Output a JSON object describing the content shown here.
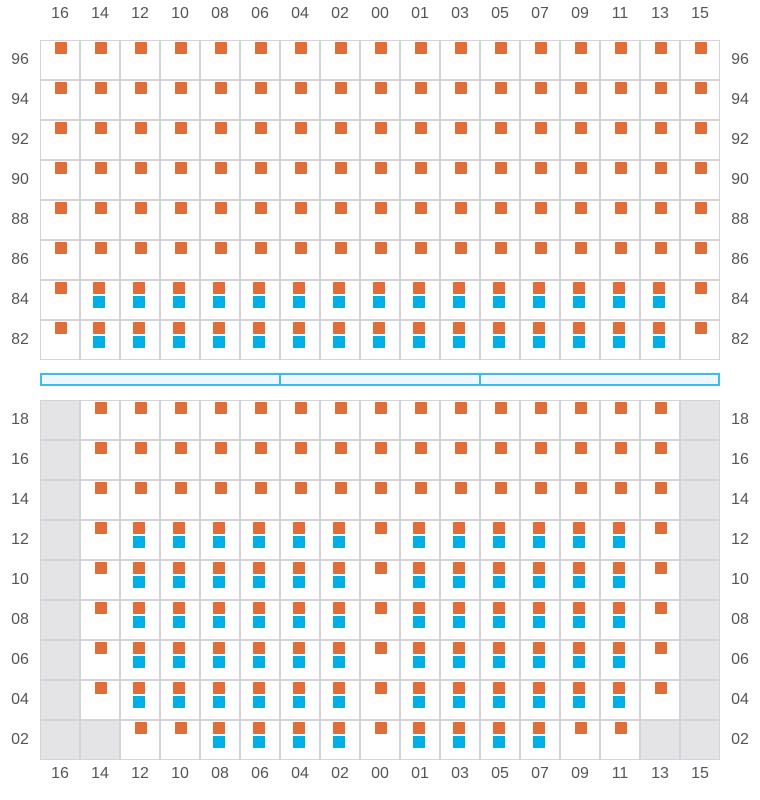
{
  "columns": [
    "16",
    "14",
    "12",
    "10",
    "08",
    "06",
    "04",
    "02",
    "00",
    "01",
    "03",
    "05",
    "07",
    "09",
    "11",
    "13",
    "15"
  ],
  "colors": {
    "seat_primary": "#e06c37",
    "seat_secondary": "#00aee8",
    "unavailable": "#e4e4e6",
    "divider": "#3bbcf0"
  },
  "legend_codes": {
    "o": "primary marker only",
    "ob": "primary and secondary markers",
    "x": "unavailable cell"
  },
  "sections": [
    {
      "rows": [
        {
          "label": "96",
          "cells": [
            "o",
            "o",
            "o",
            "o",
            "o",
            "o",
            "o",
            "o",
            "o",
            "o",
            "o",
            "o",
            "o",
            "o",
            "o",
            "o",
            "o"
          ]
        },
        {
          "label": "94",
          "cells": [
            "o",
            "o",
            "o",
            "o",
            "o",
            "o",
            "o",
            "o",
            "o",
            "o",
            "o",
            "o",
            "o",
            "o",
            "o",
            "o",
            "o"
          ]
        },
        {
          "label": "92",
          "cells": [
            "o",
            "o",
            "o",
            "o",
            "o",
            "o",
            "o",
            "o",
            "o",
            "o",
            "o",
            "o",
            "o",
            "o",
            "o",
            "o",
            "o"
          ]
        },
        {
          "label": "90",
          "cells": [
            "o",
            "o",
            "o",
            "o",
            "o",
            "o",
            "o",
            "o",
            "o",
            "o",
            "o",
            "o",
            "o",
            "o",
            "o",
            "o",
            "o"
          ]
        },
        {
          "label": "88",
          "cells": [
            "o",
            "o",
            "o",
            "o",
            "o",
            "o",
            "o",
            "o",
            "o",
            "o",
            "o",
            "o",
            "o",
            "o",
            "o",
            "o",
            "o"
          ]
        },
        {
          "label": "86",
          "cells": [
            "o",
            "o",
            "o",
            "o",
            "o",
            "o",
            "o",
            "o",
            "o",
            "o",
            "o",
            "o",
            "o",
            "o",
            "o",
            "o",
            "o"
          ]
        },
        {
          "label": "84",
          "cells": [
            "o",
            "ob",
            "ob",
            "ob",
            "ob",
            "ob",
            "ob",
            "ob",
            "ob",
            "ob",
            "ob",
            "ob",
            "ob",
            "ob",
            "ob",
            "ob",
            "o"
          ]
        },
        {
          "label": "82",
          "cells": [
            "o",
            "ob",
            "ob",
            "ob",
            "ob",
            "ob",
            "ob",
            "ob",
            "ob",
            "ob",
            "ob",
            "ob",
            "ob",
            "ob",
            "ob",
            "ob",
            "o"
          ]
        }
      ]
    },
    {
      "rows": [
        {
          "label": "18",
          "cells": [
            "x",
            "o",
            "o",
            "o",
            "o",
            "o",
            "o",
            "o",
            "o",
            "o",
            "o",
            "o",
            "o",
            "o",
            "o",
            "o",
            "x"
          ]
        },
        {
          "label": "16",
          "cells": [
            "x",
            "o",
            "o",
            "o",
            "o",
            "o",
            "o",
            "o",
            "o",
            "o",
            "o",
            "o",
            "o",
            "o",
            "o",
            "o",
            "x"
          ]
        },
        {
          "label": "14",
          "cells": [
            "x",
            "o",
            "o",
            "o",
            "o",
            "o",
            "o",
            "o",
            "o",
            "o",
            "o",
            "o",
            "o",
            "o",
            "o",
            "o",
            "x"
          ]
        },
        {
          "label": "12",
          "cells": [
            "x",
            "o",
            "ob",
            "ob",
            "ob",
            "ob",
            "ob",
            "ob",
            "o",
            "ob",
            "ob",
            "ob",
            "ob",
            "ob",
            "ob",
            "o",
            "x"
          ]
        },
        {
          "label": "10",
          "cells": [
            "x",
            "o",
            "ob",
            "ob",
            "ob",
            "ob",
            "ob",
            "ob",
            "o",
            "ob",
            "ob",
            "ob",
            "ob",
            "ob",
            "ob",
            "o",
            "x"
          ]
        },
        {
          "label": "08",
          "cells": [
            "x",
            "o",
            "ob",
            "ob",
            "ob",
            "ob",
            "ob",
            "ob",
            "o",
            "ob",
            "ob",
            "ob",
            "ob",
            "ob",
            "ob",
            "o",
            "x"
          ]
        },
        {
          "label": "06",
          "cells": [
            "x",
            "o",
            "ob",
            "ob",
            "ob",
            "ob",
            "ob",
            "ob",
            "o",
            "ob",
            "ob",
            "ob",
            "ob",
            "ob",
            "ob",
            "o",
            "x"
          ]
        },
        {
          "label": "04",
          "cells": [
            "x",
            "o",
            "ob",
            "ob",
            "ob",
            "ob",
            "ob",
            "ob",
            "o",
            "ob",
            "ob",
            "ob",
            "ob",
            "ob",
            "ob",
            "o",
            "x"
          ]
        },
        {
          "label": "02",
          "cells": [
            "x",
            "x",
            "o",
            "o",
            "ob",
            "ob",
            "ob",
            "ob",
            "o",
            "ob",
            "ob",
            "ob",
            "ob",
            "o",
            "o",
            "x",
            "x"
          ]
        }
      ]
    }
  ]
}
